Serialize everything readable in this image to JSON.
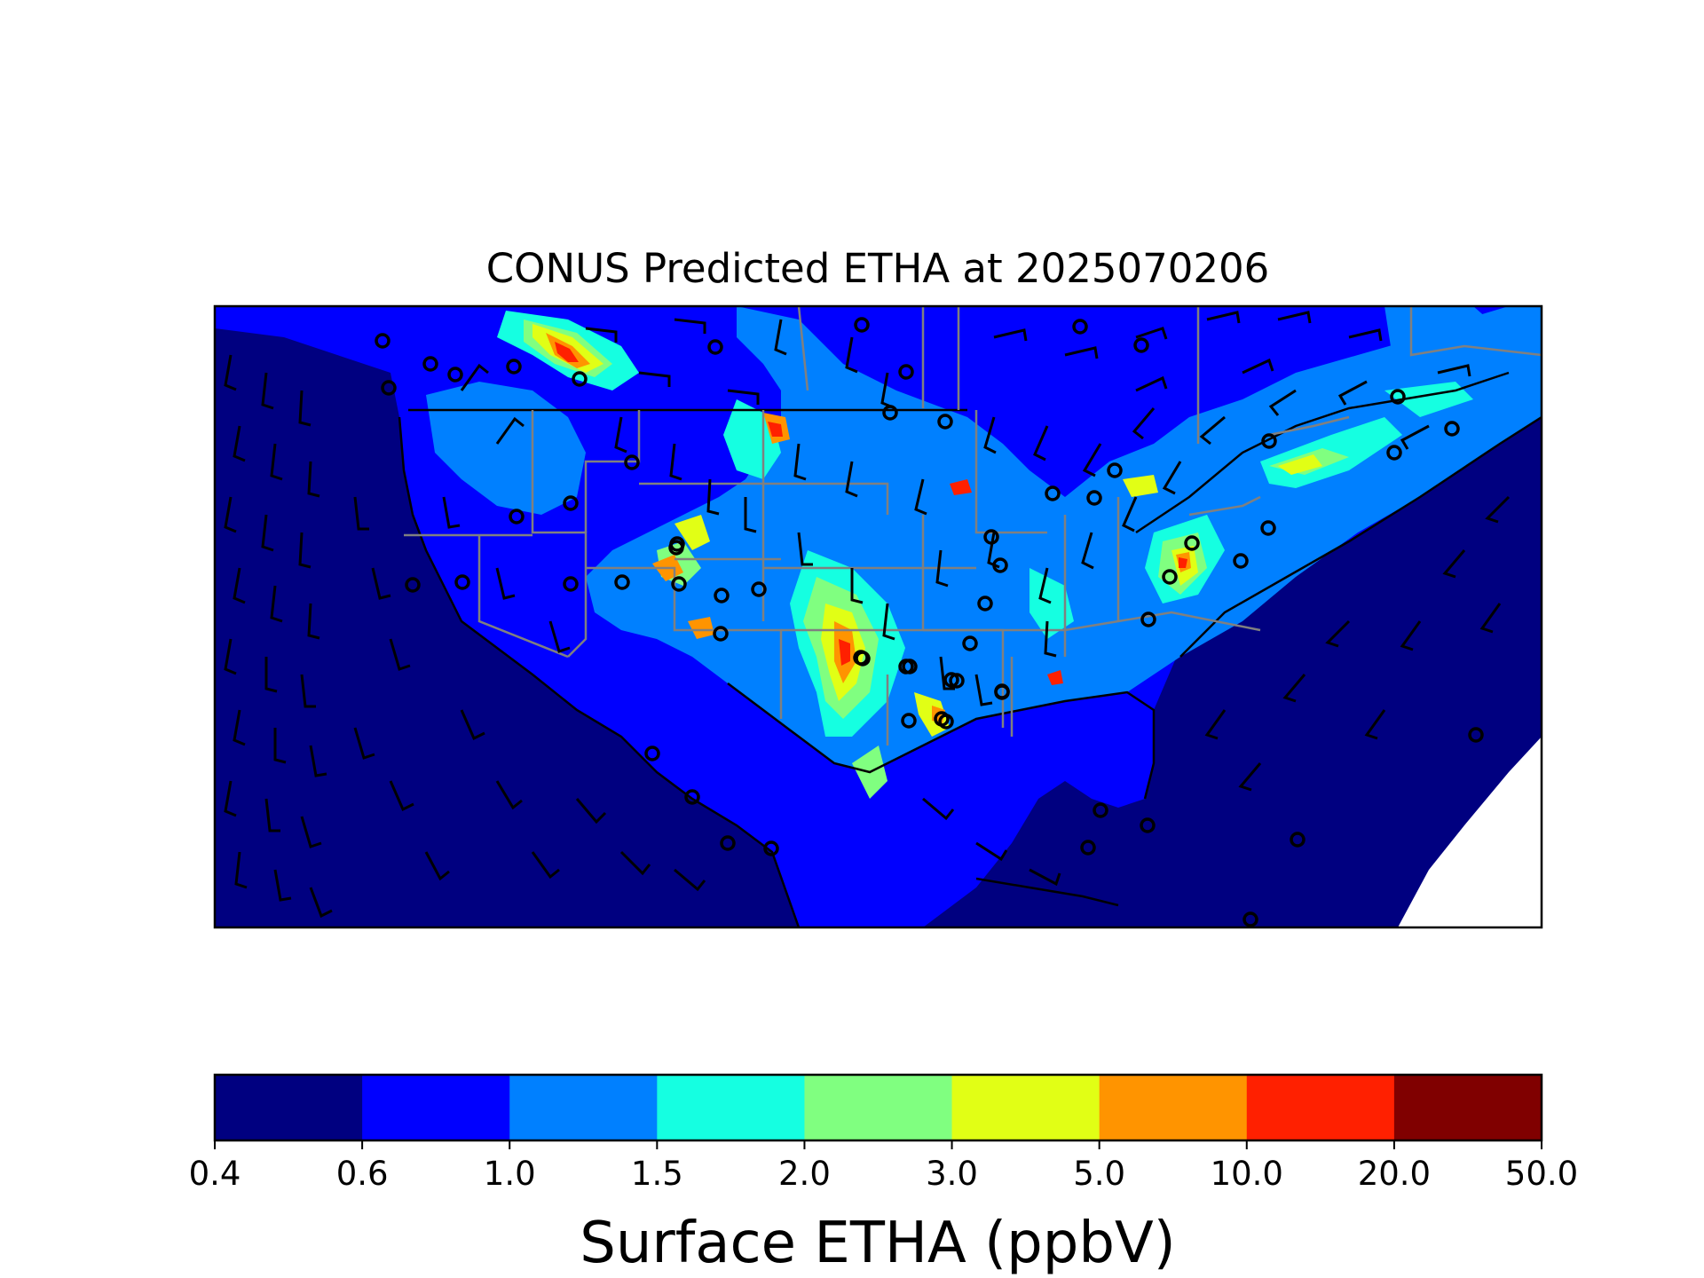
{
  "title": "CONUS Predicted ETHA at 2025070206",
  "colorbar": {
    "label": "Surface ETHA (ppbV)",
    "ticks": [
      "0.4",
      "0.6",
      "1.0",
      "1.5",
      "2.0",
      "3.0",
      "5.0",
      "10.0",
      "20.0",
      "50.0"
    ],
    "colors": [
      "#000080",
      "#0000ff",
      "#0080ff",
      "#15ffe1",
      "#80ff80",
      "#e1ff15",
      "#ff9400",
      "#ff2000",
      "#800000"
    ]
  },
  "map": {
    "ocean_color": "#000080",
    "land_background_color": "#0000ff",
    "outside_domain_color": "#ffffff",
    "state_line_color": "#808080",
    "coast_color": "#000000",
    "wind_symbols": "wind barbs and calm circles (black)"
  },
  "chart_data": {
    "type": "heatmap",
    "title": "CONUS Predicted ETHA at 2025070206",
    "colorbar_label": "Surface ETHA (ppbV)",
    "levels": [
      0.4,
      0.6,
      1.0,
      1.5,
      2.0,
      3.0,
      5.0,
      10.0,
      20.0,
      50.0
    ],
    "colors": [
      "#000080",
      "#0000ff",
      "#0080ff",
      "#15ffe1",
      "#80ff80",
      "#e1ff15",
      "#ff9400",
      "#ff2000",
      "#800000"
    ],
    "colorbar_orientation": "horizontal"
  }
}
